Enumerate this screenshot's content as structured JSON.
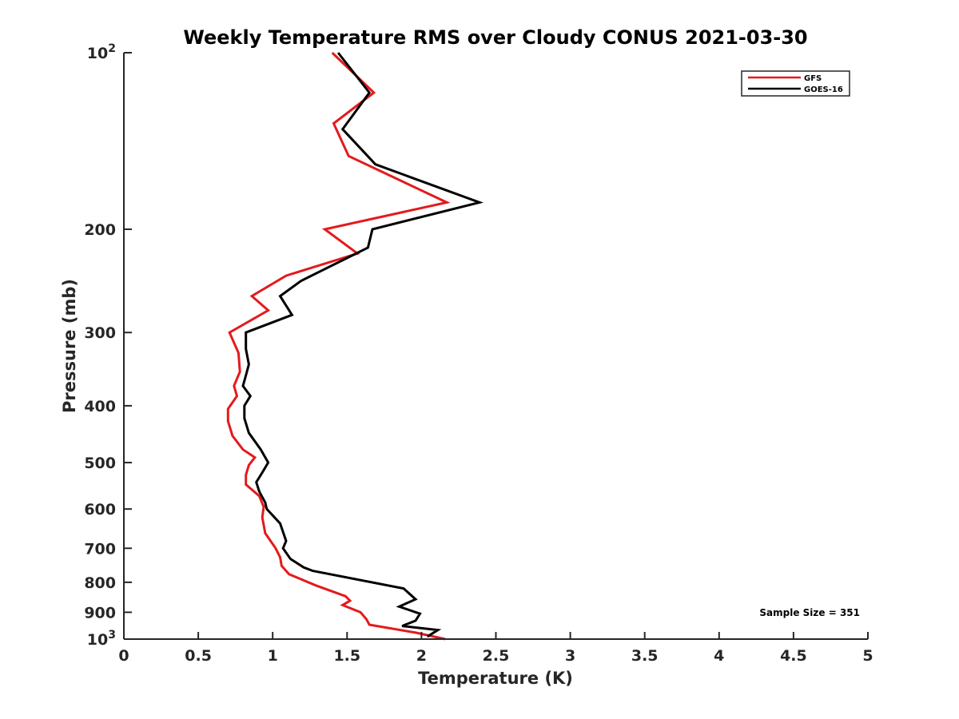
{
  "chart_data": {
    "type": "line",
    "title": "Weekly Temperature RMS over Cloudy CONUS 2021-03-30",
    "xlabel": "Temperature (K)",
    "ylabel": "Pressure (mb)",
    "xlim": [
      0,
      5
    ],
    "ylim": [
      100,
      1000
    ],
    "y_scale": "log",
    "y_reversed": true,
    "x_ticks": [
      0,
      0.5,
      1,
      1.5,
      2,
      2.5,
      3,
      3.5,
      4,
      4.5,
      5
    ],
    "x_tick_labels": [
      "0",
      "0.5",
      "1",
      "1.5",
      "2",
      "2.5",
      "3",
      "3.5",
      "4",
      "4.5",
      "5"
    ],
    "y_ticks": [
      {
        "value": 100,
        "base": "10",
        "exp": "2"
      },
      {
        "value": 200,
        "label": "200"
      },
      {
        "value": 300,
        "label": "300"
      },
      {
        "value": 400,
        "label": "400"
      },
      {
        "value": 500,
        "label": "500"
      },
      {
        "value": 600,
        "label": "600"
      },
      {
        "value": 700,
        "label": "700"
      },
      {
        "value": 800,
        "label": "800"
      },
      {
        "value": 900,
        "label": "900"
      },
      {
        "value": 1000,
        "base": "10",
        "exp": "3"
      }
    ],
    "grid": false,
    "legend_position": "top-right",
    "annotation": "Sample Size = 351",
    "series": [
      {
        "name": "GFS",
        "color": "#e31a1c",
        "points": [
          [
            1.4,
            100
          ],
          [
            1.68,
            117
          ],
          [
            1.41,
            132
          ],
          [
            1.51,
            150
          ],
          [
            2.17,
            180
          ],
          [
            1.35,
            200
          ],
          [
            1.57,
            220
          ],
          [
            1.09,
            240
          ],
          [
            0.86,
            260
          ],
          [
            0.97,
            275
          ],
          [
            0.71,
            300
          ],
          [
            0.77,
            325
          ],
          [
            0.78,
            350
          ],
          [
            0.74,
            370
          ],
          [
            0.76,
            385
          ],
          [
            0.7,
            405
          ],
          [
            0.7,
            425
          ],
          [
            0.73,
            450
          ],
          [
            0.8,
            475
          ],
          [
            0.88,
            490
          ],
          [
            0.84,
            505
          ],
          [
            0.82,
            525
          ],
          [
            0.82,
            545
          ],
          [
            0.91,
            570
          ],
          [
            0.94,
            595
          ],
          [
            0.93,
            620
          ],
          [
            0.95,
            660
          ],
          [
            1.02,
            700
          ],
          [
            1.05,
            725
          ],
          [
            1.06,
            750
          ],
          [
            1.11,
            775
          ],
          [
            1.29,
            810
          ],
          [
            1.49,
            845
          ],
          [
            1.52,
            860
          ],
          [
            1.47,
            875
          ],
          [
            1.59,
            900
          ],
          [
            1.63,
            925
          ],
          [
            1.65,
            945
          ],
          [
            1.96,
            975
          ],
          [
            2.16,
            1000
          ]
        ]
      },
      {
        "name": "GOES-16",
        "color": "#000000",
        "points": [
          [
            1.44,
            100
          ],
          [
            1.65,
            117
          ],
          [
            1.47,
            135
          ],
          [
            1.69,
            155
          ],
          [
            2.39,
            180
          ],
          [
            1.67,
            200
          ],
          [
            1.64,
            215
          ],
          [
            1.19,
            245
          ],
          [
            1.05,
            260
          ],
          [
            1.13,
            280
          ],
          [
            0.82,
            300
          ],
          [
            0.82,
            320
          ],
          [
            0.84,
            340
          ],
          [
            0.82,
            355
          ],
          [
            0.8,
            370
          ],
          [
            0.85,
            385
          ],
          [
            0.81,
            400
          ],
          [
            0.81,
            420
          ],
          [
            0.84,
            445
          ],
          [
            0.92,
            475
          ],
          [
            0.97,
            500
          ],
          [
            0.93,
            520
          ],
          [
            0.89,
            540
          ],
          [
            0.91,
            560
          ],
          [
            0.95,
            585
          ],
          [
            0.96,
            600
          ],
          [
            1.05,
            635
          ],
          [
            1.09,
            680
          ],
          [
            1.07,
            700
          ],
          [
            1.12,
            730
          ],
          [
            1.21,
            755
          ],
          [
            1.27,
            765
          ],
          [
            1.88,
            820
          ],
          [
            1.96,
            855
          ],
          [
            1.85,
            880
          ],
          [
            1.99,
            905
          ],
          [
            1.96,
            930
          ],
          [
            1.87,
            950
          ],
          [
            2.11,
            965
          ],
          [
            2.04,
            990
          ]
        ]
      }
    ]
  }
}
